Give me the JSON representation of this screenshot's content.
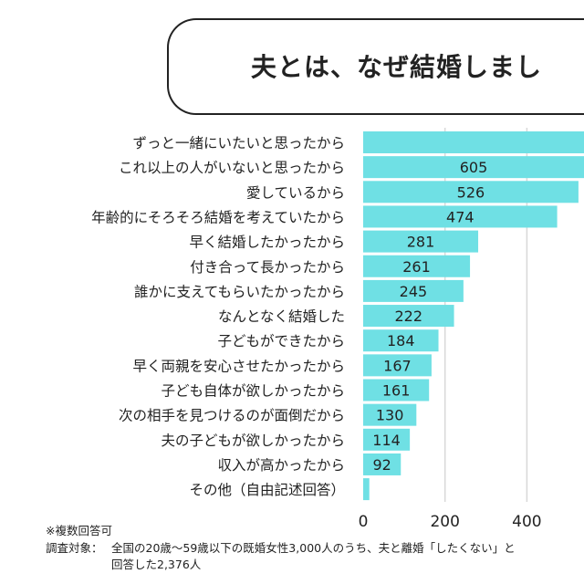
{
  "chart_data": {
    "type": "bar",
    "orientation": "horizontal",
    "title": "夫とは、なぜ結婚しまし",
    "categories": [
      "ずっと一緒にいたいと思ったから",
      "これ以上の人がいないと思ったから",
      "愛しているから",
      "年齢的にそろそろ結婚を考えていたから",
      "早く結婚したかったから",
      "付き合って長かったから",
      "誰かに支えてもらいたかったから",
      "なんとなく結婚した",
      "子どもができたから",
      "早く両親を安心させたかったから",
      "子ども自体が欲しかったから",
      "次の相手を見つけるのが面倒だから",
      "夫の子どもが欲しかったから",
      "収入が高かったから",
      "その他（自由記述回答）"
    ],
    "values": [
      null,
      605,
      526,
      474,
      281,
      261,
      245,
      222,
      184,
      167,
      161,
      130,
      114,
      92,
      15
    ],
    "value_labels": [
      "",
      "605",
      "526",
      "474",
      "281",
      "261",
      "245",
      "222",
      "184",
      "167",
      "161",
      "130",
      "114",
      "92",
      ""
    ],
    "x_ticks": [
      "0",
      "200",
      "400"
    ],
    "xlim": [
      0,
      540
    ],
    "grid": true,
    "bar_color": "#6fe0e4"
  },
  "notes": {
    "multiple": "※複数回答可",
    "survey_label": "調査対象：",
    "survey_line1": "全国の20歳〜59歳以下の既婚女性3,000人のうち、夫と離婚「したくない」と",
    "survey_line2": "回答した2,376人"
  }
}
